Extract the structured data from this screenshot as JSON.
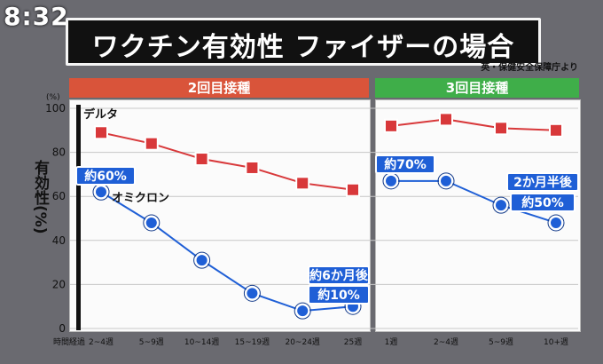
{
  "clock": "8:32",
  "title": "ワクチン有効性 ファイザーの場合",
  "source": "英・保健安全保障庁より",
  "y_unit_top": "(%)",
  "y_axis_label": "有効性(%)",
  "x_axis_title": "時間経過",
  "colors": {
    "delta": "#d8383a",
    "omicron": "#1f5fd6",
    "header_left": "#d9543a",
    "header_right": "#3fae49",
    "callout": "#1f5fd6"
  },
  "chart_data": {
    "type": "line",
    "ylim": [
      0,
      100
    ],
    "yticks": [
      "0",
      "20",
      "40",
      "60",
      "80",
      "100"
    ],
    "ylabel": "有効性(%)",
    "panels": [
      {
        "header": "2回目接種",
        "categories": [
          "2~4週",
          "5~9週",
          "10~14週",
          "15~19週",
          "20~24週",
          "25週"
        ],
        "series": [
          {
            "name": "デルタ",
            "values": [
              89,
              84,
              77,
              73,
              66,
              63
            ]
          },
          {
            "name": "オミクロン",
            "values": [
              62,
              48,
              31,
              16,
              8,
              10
            ]
          }
        ],
        "annotations": [
          "約60%",
          "約6か月後",
          "約10%"
        ]
      },
      {
        "header": "3回目接種",
        "categories": [
          "1週",
          "2~4週",
          "5~9週",
          "10+週"
        ],
        "series": [
          {
            "name": "デルタ",
            "values": [
              92,
              95,
              91,
              90
            ]
          },
          {
            "name": "オミクロン",
            "values": [
              67,
              67,
              56,
              48
            ]
          }
        ],
        "annotations": [
          "約70%",
          "2か月半後",
          "約50%"
        ]
      }
    ]
  }
}
